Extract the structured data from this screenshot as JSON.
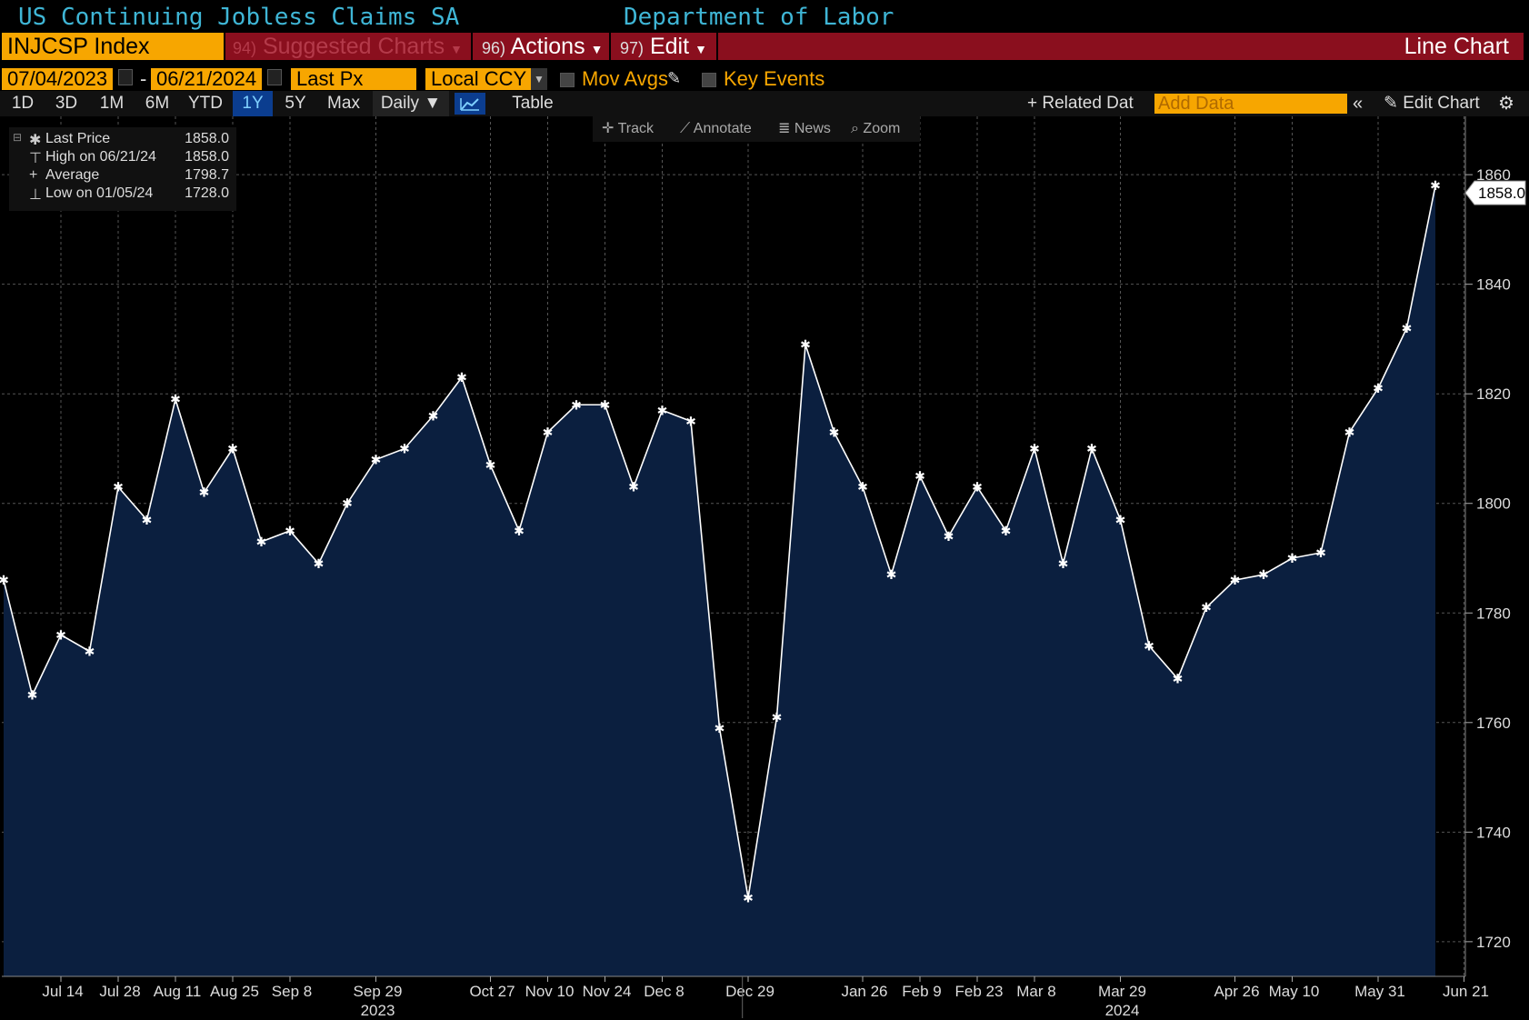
{
  "header": {
    "title": "US Continuing Jobless Claims SA",
    "source": "Department of Labor"
  },
  "toolbar": {
    "ticker": "INJCSP Index",
    "menus": [
      {
        "num": "94)",
        "label": "Suggested Charts",
        "dim": true
      },
      {
        "num": "96)",
        "label": "Actions",
        "dim": false
      },
      {
        "num": "97)",
        "label": "Edit",
        "dim": false
      }
    ],
    "chart_type_label": "Line Chart",
    "start_date": "07/04/2023",
    "end_date": "06/21/2024",
    "field": "Last Px",
    "currency": "Local CCY",
    "mov_avgs_label": "Mov Avgs",
    "key_events_label": "Key Events",
    "ranges": [
      "1D",
      "3D",
      "1M",
      "6M",
      "YTD",
      "1Y",
      "5Y",
      "Max"
    ],
    "active_range": "1Y",
    "frequency": "Daily",
    "table_label": "Table",
    "related_data_label": "Related Dat",
    "add_data_placeholder": "Add Data",
    "edit_chart_label": "Edit Chart",
    "tools": [
      "Track",
      "Annotate",
      "News",
      "Zoom"
    ]
  },
  "legend": {
    "rows": [
      {
        "label": "Last Price",
        "value": "1858.0"
      },
      {
        "label": "High on 06/21/24",
        "value": "1858.0"
      },
      {
        "label": "Average",
        "value": "1798.7"
      },
      {
        "label": "Low on 01/05/24",
        "value": "1728.0"
      }
    ]
  },
  "colors": {
    "line": "#ffffff",
    "area": "#0b1f3f",
    "accent": "#f7a600",
    "title": "#3fb6d6",
    "menubar": "#8a0f1e"
  },
  "chart_data": {
    "type": "area",
    "title": "US Continuing Jobless Claims SA",
    "ylim": [
      1715,
      1865
    ],
    "y_ticks": [
      1720,
      1740,
      1760,
      1780,
      1800,
      1820,
      1840,
      1860
    ],
    "last_value_label": "1858.0",
    "x_tick_labels": [
      "Jul 14",
      "Jul 28",
      "Aug 11",
      "Aug 25",
      "Sep 8",
      "Sep 29",
      "Oct 27",
      "Nov 10",
      "Nov 24",
      "Dec 8",
      "Dec 29",
      "Jan 26",
      "Feb 9",
      "Feb 23",
      "Mar 8",
      "Mar 29",
      "Apr 26",
      "May 10",
      "May 31",
      "Jun 21"
    ],
    "x_tick_index": [
      2,
      4,
      6,
      8,
      10,
      13,
      17,
      19,
      21,
      23,
      26,
      30,
      32,
      34,
      36,
      39,
      43,
      45,
      48,
      51
    ],
    "year_labels": [
      {
        "label": "2023",
        "index": 13
      },
      {
        "label": "2024",
        "index": 39
      }
    ],
    "grid": true,
    "series": [
      {
        "values": [
          1786,
          1765,
          1776,
          1773,
          1803,
          1797,
          1819,
          1802,
          1810,
          1793,
          1795,
          1789,
          1800,
          1808,
          1810,
          1816,
          1823,
          1807,
          1795,
          1813,
          1818,
          1818,
          1803,
          1817,
          1815,
          1759,
          1728,
          1761,
          1829,
          1813,
          1803,
          1787,
          1805,
          1794,
          1803,
          1795,
          1810,
          1789,
          1810,
          1797,
          1774,
          1768,
          1781,
          1786,
          1787,
          1790,
          1791,
          1813,
          1821,
          1832,
          1858
        ]
      }
    ]
  }
}
